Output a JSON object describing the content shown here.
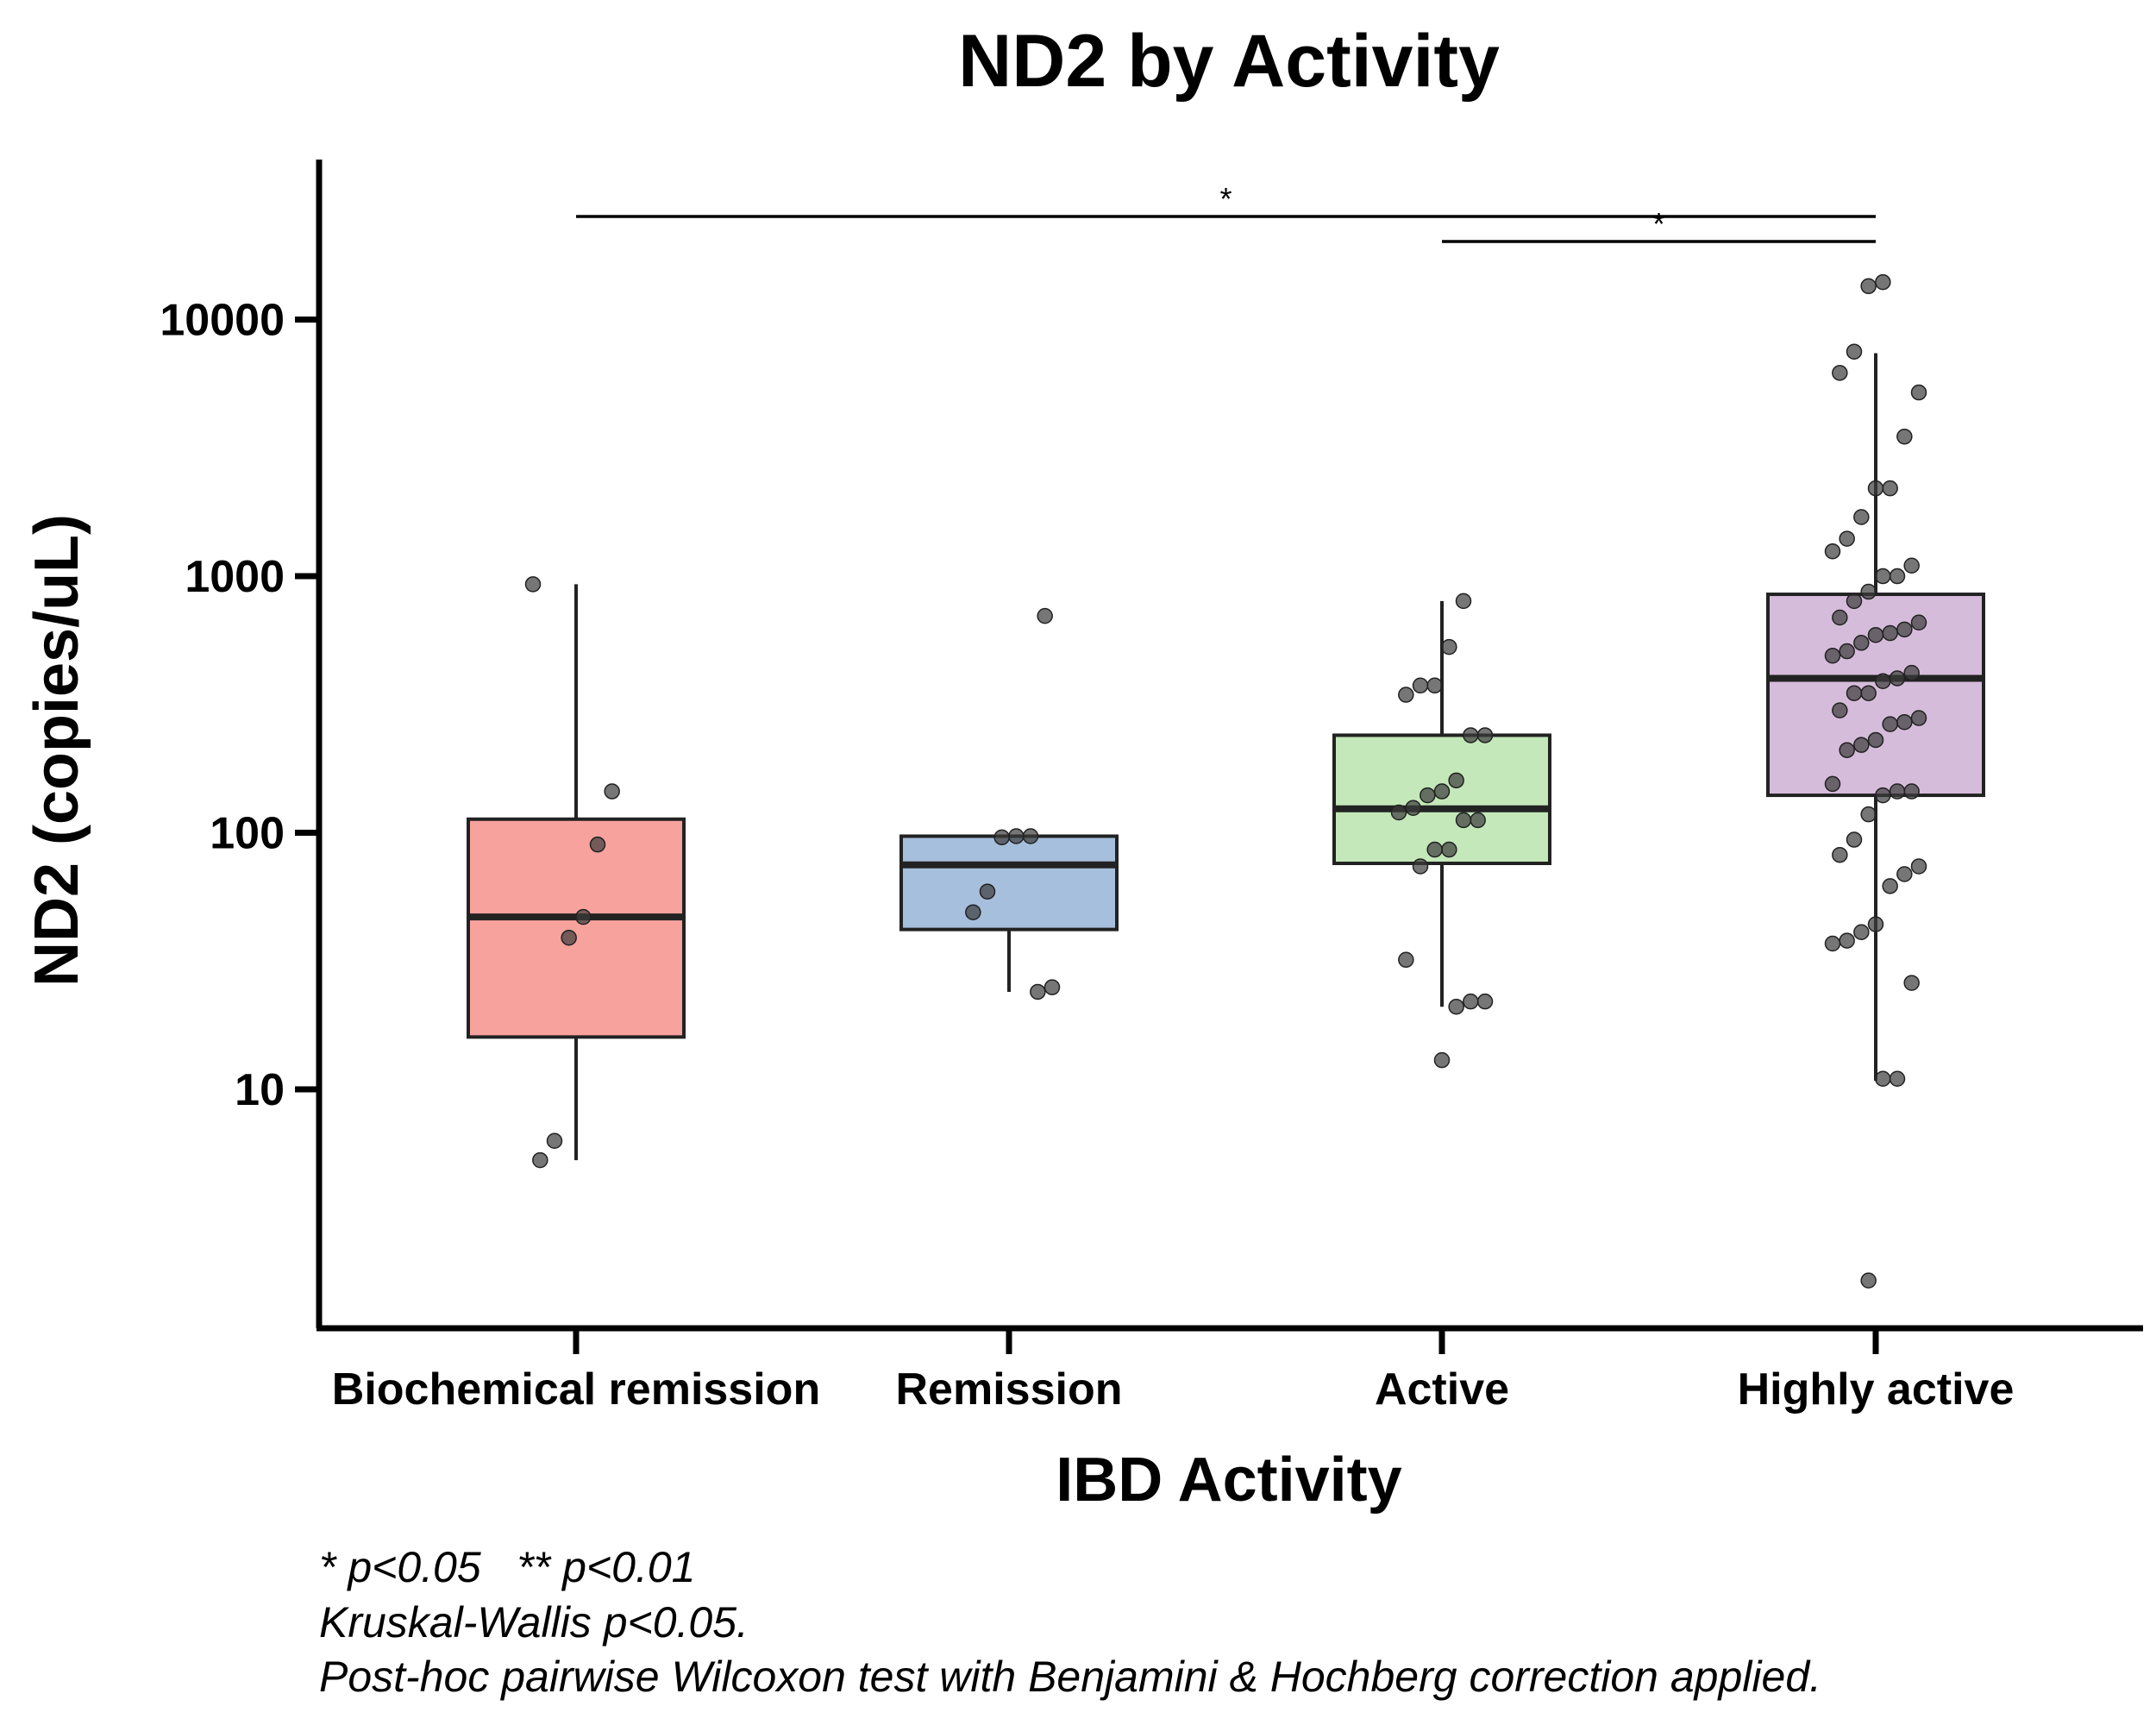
{
  "chart_data": {
    "type": "box",
    "title": "ND2 by Activity",
    "xlabel": "IBD Activity",
    "ylabel": "ND2 (copies/uL)",
    "yscale": "log",
    "ylim": [
      1.2,
      40000
    ],
    "yticks": [
      10,
      100,
      1000,
      10000
    ],
    "ytick_labels": [
      "10",
      "100",
      "1000",
      "10000"
    ],
    "categories": [
      "Biochemical remission",
      "Remission",
      "Active",
      "Highly active"
    ],
    "colors": [
      "#F8A29E",
      "#A6BFDD",
      "#C4E8B9",
      "#D6BCDB"
    ],
    "grid": false,
    "legend": "none",
    "boxes": [
      {
        "category": "Biochemical remission",
        "whisker_low": 5.3,
        "q1": 16,
        "median": 47,
        "q3": 113,
        "whisker_high": 930
      },
      {
        "category": "Remission",
        "whisker_low": 24,
        "q1": 42,
        "median": 75,
        "q3": 97,
        "whisker_high": 97
      },
      {
        "category": "Active",
        "whisker_low": 21,
        "q1": 76,
        "median": 124,
        "q3": 240,
        "whisker_high": 800
      },
      {
        "category": "Highly active",
        "whisker_low": 10.8,
        "q1": 140,
        "median": 400,
        "q3": 850,
        "whisker_high": 7400
      }
    ],
    "points": [
      {
        "category": "Biochemical remission",
        "values": [
          930,
          145,
          90,
          47,
          39,
          6.3,
          5.3
        ]
      },
      {
        "category": "Remission",
        "values": [
          700,
          97,
          97,
          96,
          59,
          49,
          25,
          24
        ]
      },
      {
        "category": "Active",
        "values": [
          800,
          530,
          375,
          375,
          345,
          240,
          240,
          160,
          145,
          140,
          125,
          120,
          112,
          112,
          86,
          86,
          74,
          32,
          22,
          22,
          21,
          13
        ]
      },
      {
        "category": "Highly active",
        "values": [
          14000,
          13500,
          7500,
          6200,
          5200,
          3500,
          2200,
          2200,
          1700,
          1400,
          1250,
          1100,
          1000,
          1000,
          870,
          800,
          690,
          660,
          620,
          600,
          590,
          550,
          510,
          490,
          420,
          400,
          390,
          350,
          350,
          300,
          280,
          270,
          265,
          230,
          220,
          210,
          155,
          145,
          145,
          140,
          118,
          94,
          82,
          74,
          69,
          62,
          44,
          41,
          38,
          37,
          26,
          11,
          11,
          1.8
        ]
      }
    ],
    "significance": [
      {
        "from": "Biochemical remission",
        "to": "Highly active",
        "label": "*"
      },
      {
        "from": "Active",
        "to": "Highly active",
        "label": "*"
      }
    ],
    "annotations": [
      "* p<0.05   ** p<0.01",
      "Kruskal-Wallis p<0.05.",
      "Post-hoc pairwise Wilcoxon test with Benjamini & Hochberg correction applied."
    ]
  }
}
